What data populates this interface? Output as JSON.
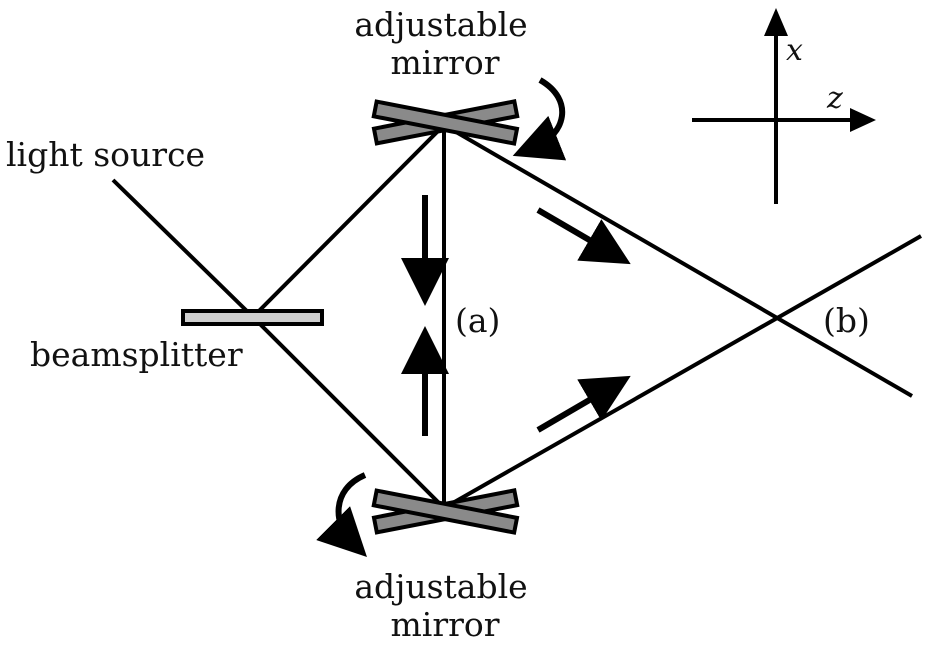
{
  "labels": {
    "top_mirror_line1": "adjustable",
    "top_mirror_line2": "mirror",
    "bottom_mirror_line1": "adjustable",
    "bottom_mirror_line2": "mirror",
    "light_source": "light source",
    "beamsplitter": "beamsplitter",
    "point_a": "(a)",
    "point_b": "(b)"
  },
  "axes": {
    "vertical": "x",
    "horizontal": "z"
  },
  "colors": {
    "mirror_fill": "#8a8a8a",
    "splitter_fill": "#cfcfcf",
    "line": "#000000"
  }
}
